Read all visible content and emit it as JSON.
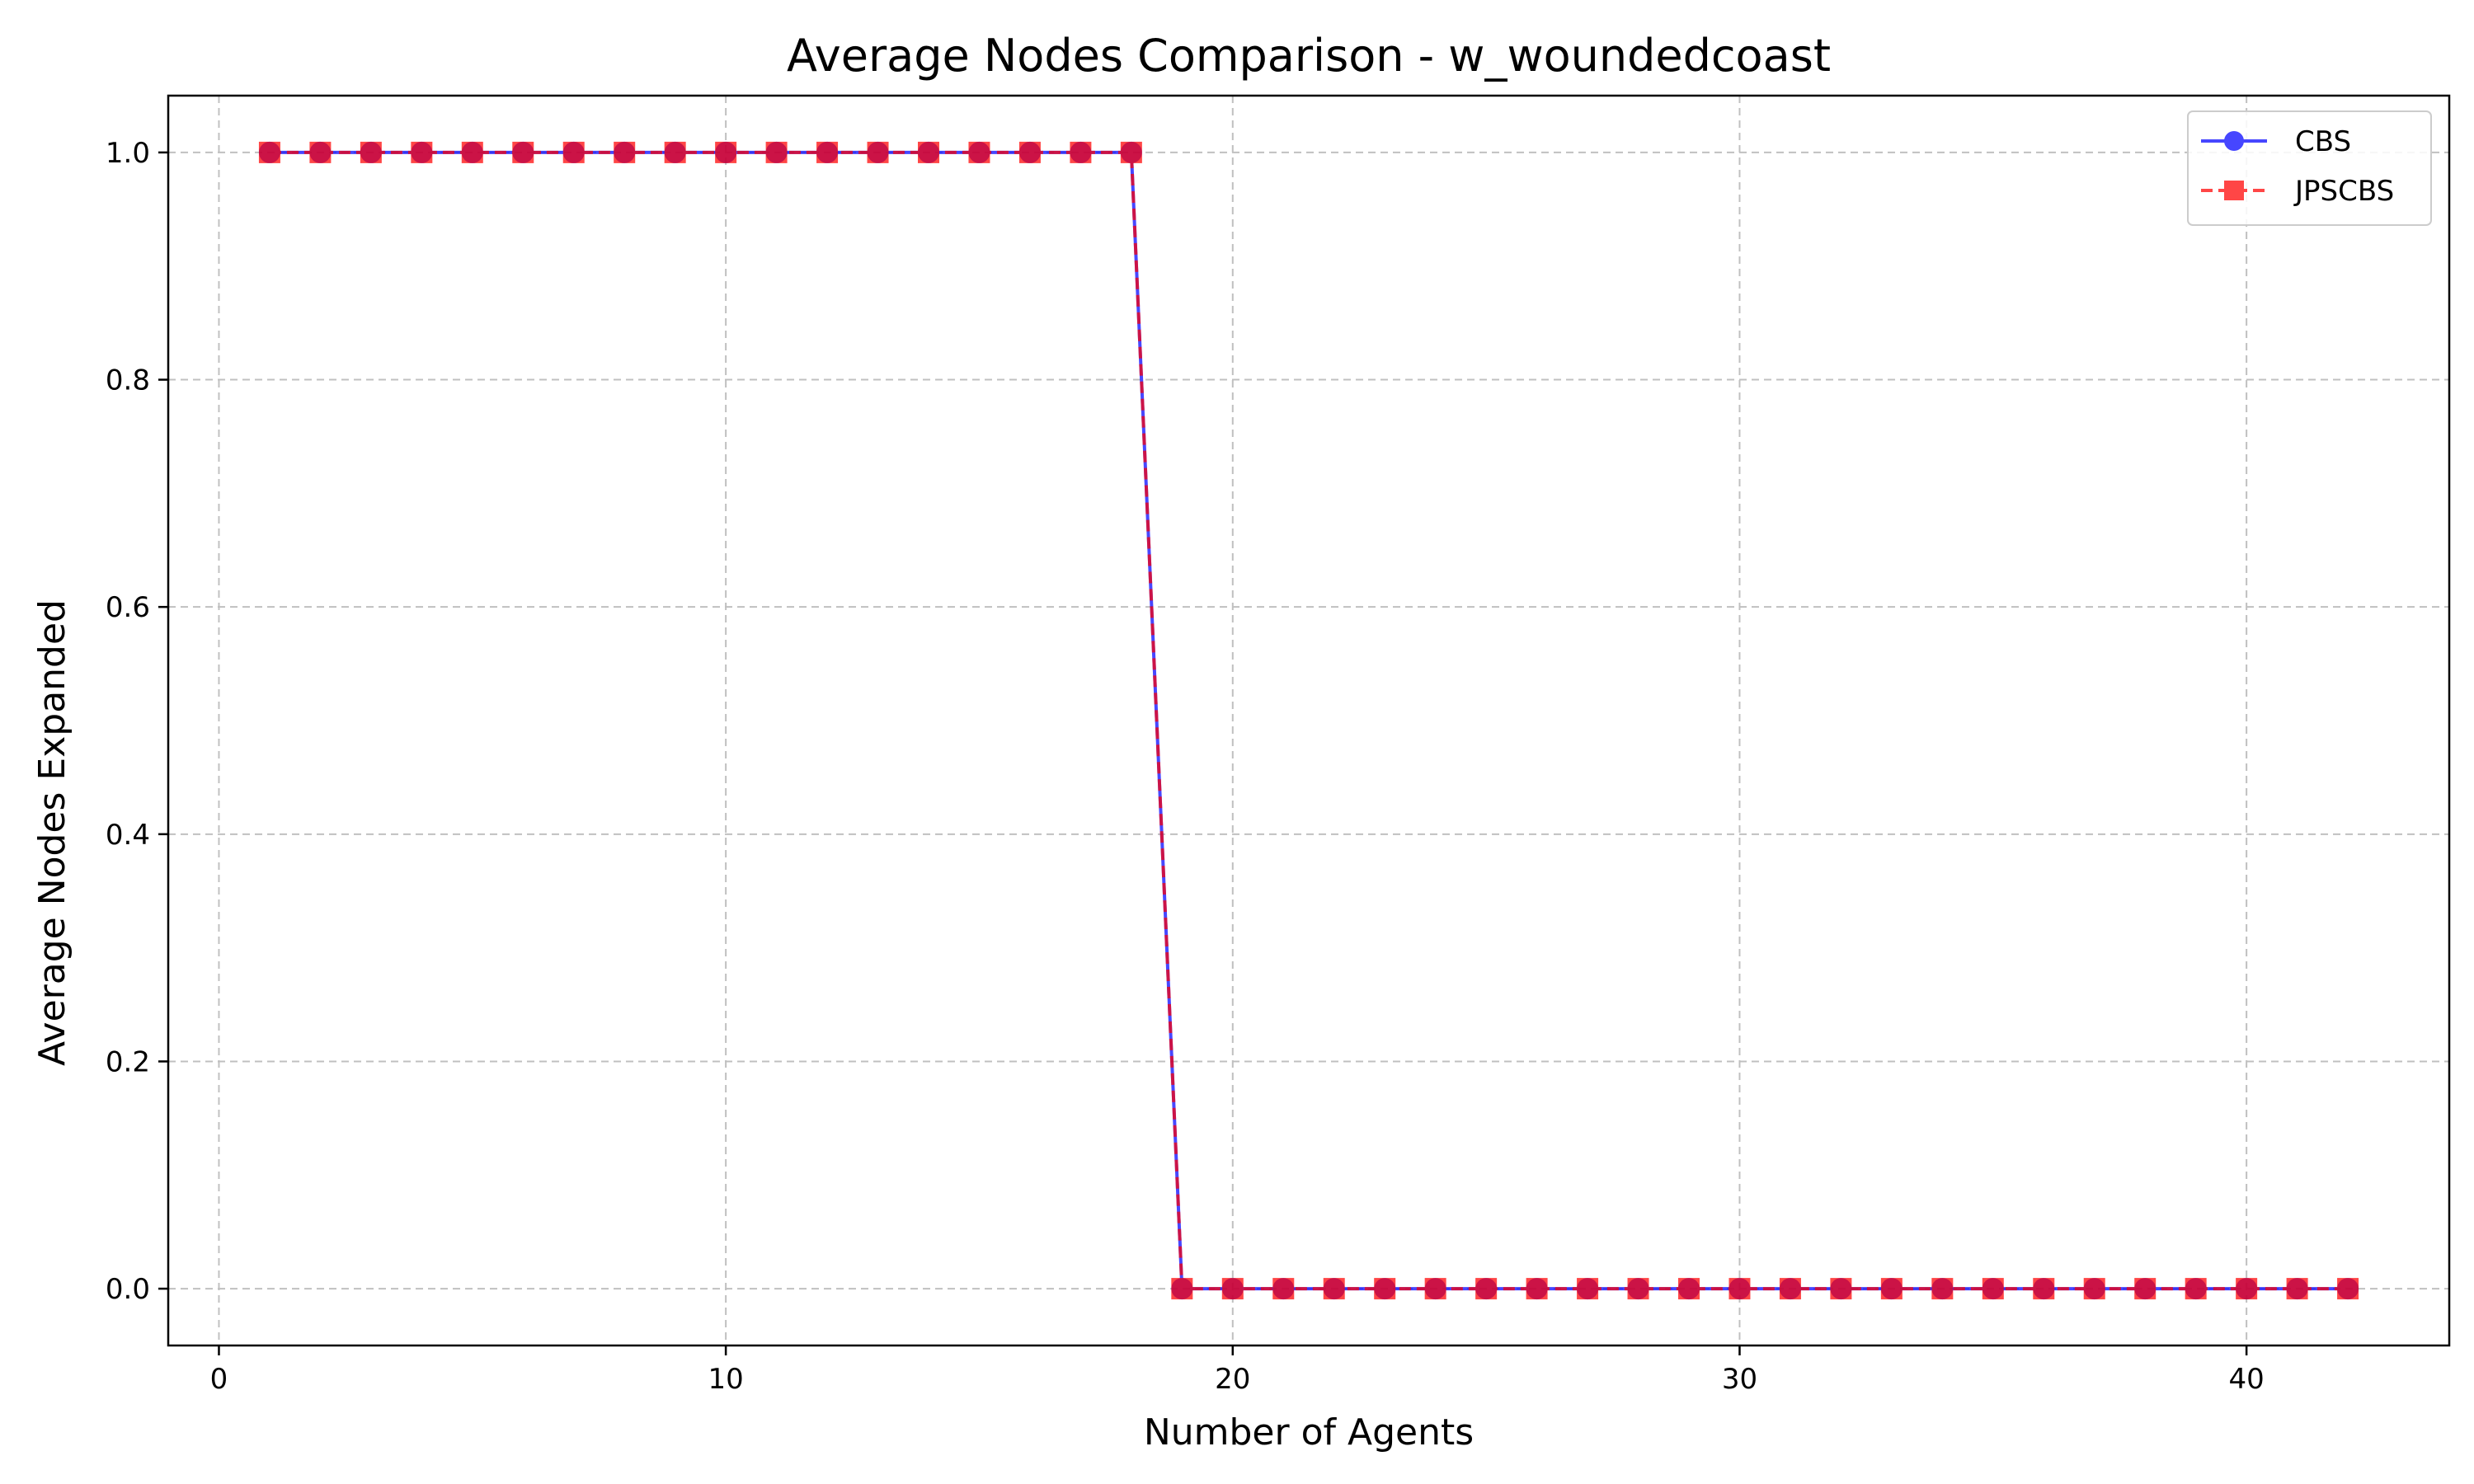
{
  "chart_data": {
    "type": "line",
    "title": "Average Nodes Comparison - w_woundedcoast",
    "xlabel": "Number of Agents",
    "ylabel": "Average Nodes Expanded",
    "xlim": [
      -1,
      44
    ],
    "ylim": [
      -0.05,
      1.05
    ],
    "x_ticks": [
      0,
      10,
      20,
      30,
      40
    ],
    "y_ticks": [
      0.0,
      0.2,
      0.4,
      0.6,
      0.8,
      1.0
    ],
    "x_tick_labels": [
      "0",
      "10",
      "20",
      "30",
      "40"
    ],
    "y_tick_labels": [
      "0.0",
      "0.2",
      "0.4",
      "0.6",
      "0.8",
      "1.0"
    ],
    "grid": true,
    "legend_position": "top-right",
    "x": [
      1,
      2,
      3,
      4,
      5,
      6,
      7,
      8,
      9,
      10,
      11,
      12,
      13,
      14,
      15,
      16,
      17,
      18,
      19,
      20,
      21,
      22,
      23,
      24,
      25,
      26,
      27,
      28,
      29,
      30,
      31,
      32,
      33,
      34,
      35,
      36,
      37,
      38,
      39,
      40,
      41,
      42
    ],
    "series": [
      {
        "name": "CBS",
        "color": "#0000ff",
        "marker": "circle",
        "line_style": "solid",
        "values": [
          1,
          1,
          1,
          1,
          1,
          1,
          1,
          1,
          1,
          1,
          1,
          1,
          1,
          1,
          1,
          1,
          1,
          1,
          0,
          0,
          0,
          0,
          0,
          0,
          0,
          0,
          0,
          0,
          0,
          0,
          0,
          0,
          0,
          0,
          0,
          0,
          0,
          0,
          0,
          0,
          0,
          0
        ]
      },
      {
        "name": "JPSCBS",
        "color": "#ff0000",
        "marker": "square",
        "line_style": "dashed",
        "values": [
          1,
          1,
          1,
          1,
          1,
          1,
          1,
          1,
          1,
          1,
          1,
          1,
          1,
          1,
          1,
          1,
          1,
          1,
          0,
          0,
          0,
          0,
          0,
          0,
          0,
          0,
          0,
          0,
          0,
          0,
          0,
          0,
          0,
          0,
          0,
          0,
          0,
          0,
          0,
          0,
          0,
          0
        ]
      }
    ]
  }
}
